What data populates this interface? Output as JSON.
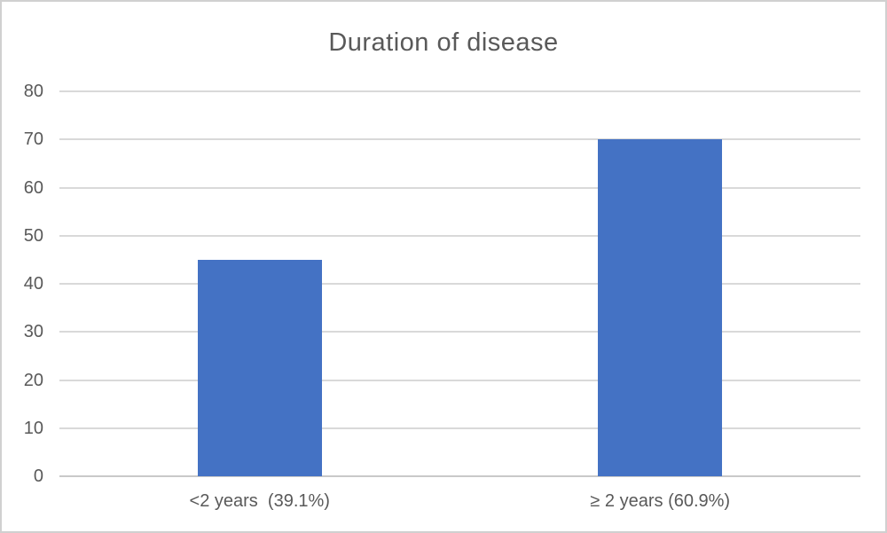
{
  "chart_data": {
    "type": "bar",
    "title": "Duration of disease",
    "categories": [
      "<2 years  (39.1%)",
      "≥ 2 years (60.9%)"
    ],
    "values": [
      45,
      70
    ],
    "series": [
      {
        "name": "Duration of disease",
        "values": [
          45,
          70
        ]
      }
    ],
    "percent_labels": [
      "39.1%",
      "60.9%"
    ],
    "xlabel": "",
    "ylabel": "",
    "ylim": [
      0,
      80
    ],
    "ytick_step": 10,
    "yticks": [
      80,
      70,
      60,
      50,
      40,
      30,
      20,
      10,
      0
    ],
    "grid": "horizontal gridlines on",
    "legend_position": "none",
    "bar_color": "#4472C4",
    "text_color": "#595959",
    "gridline_color": "#D9D9D9",
    "axis_line_color": "#C9C9C9"
  }
}
